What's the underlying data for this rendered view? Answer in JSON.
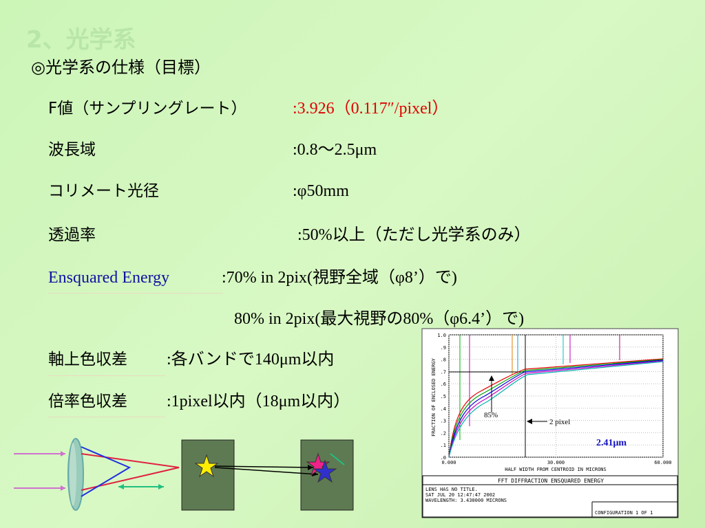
{
  "header": {
    "title": "2、光学系",
    "subtitle": "◎光学系の仕様（目標）"
  },
  "specs": [
    {
      "label": "F値（サンプリングレート）",
      "value": ":3.926（0.117″/pixel）"
    },
    {
      "label": "波長域",
      "value": ":0.8〜2.5μm"
    },
    {
      "label": "コリメート光径",
      "value": ":φ50mm"
    },
    {
      "label": "透過率",
      "value": ":50%以上（ただし光学系のみ）"
    },
    {
      "label": "Ensquared Energy",
      "value": ":70%  in 2pix(視野全域（φ8’）で)"
    },
    {
      "value": "80% in 2pix(最大視野の80%（φ6.4’）で)"
    },
    {
      "label": "軸上色収差",
      "value": ":各バンドで140μm以内"
    },
    {
      "label": "倍率色収差",
      "value": ":1pixel以内（18μm以内）"
    }
  ],
  "plot": {
    "y_axis_label": "FRACTION OF ENCLOSED ENERGY",
    "x_axis_label": "HALF WIDTH FROM CENTROID IN MICRONS",
    "yticks": [
      "1.0",
      ".9",
      ".8",
      ".7",
      ".6",
      ".5",
      ".4",
      ".3",
      ".2",
      ".1",
      ".0"
    ],
    "xticks": [
      "0.000",
      "30.000",
      "60.000"
    ],
    "annotations": [
      "85%",
      "2 pixel",
      "2.41μm"
    ],
    "footer_title": "FFT DIFFRACTION ENSQUARED ENERGY",
    "footer_lines": [
      "LENS HAS NO TITLE.",
      "SAT JUL 20 12:47:47 2002",
      "WAVELENGTH: 3.430000 MICRONS"
    ],
    "footer_config": "CONFIGURATION 1 OF 1"
  }
}
